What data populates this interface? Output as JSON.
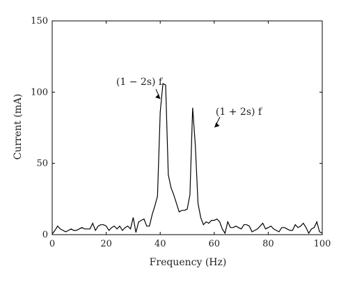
{
  "chart_data": {
    "type": "line",
    "title": "",
    "xlabel": "Frequency (Hz)",
    "ylabel": "Current (mA)",
    "xlim": [
      0,
      100
    ],
    "ylim": [
      0,
      150
    ],
    "x_ticks": [
      0,
      20,
      40,
      60,
      80,
      100
    ],
    "y_ticks": [
      0,
      50,
      100,
      150
    ],
    "grid": false,
    "series": [
      {
        "x": [
          0,
          1,
          2,
          3,
          4,
          5,
          6,
          7,
          8,
          9,
          10,
          11,
          12,
          13,
          14,
          15,
          16,
          17,
          18,
          19,
          20,
          21,
          22,
          23,
          24,
          25,
          26,
          27,
          28,
          29,
          30,
          31,
          32,
          33,
          34,
          35,
          36,
          37,
          38,
          39,
          40,
          41,
          42,
          43,
          44,
          45,
          46,
          47,
          48,
          49,
          50,
          51,
          52,
          53,
          54,
          55,
          56,
          57,
          58,
          59,
          60,
          61,
          62,
          63,
          64,
          65,
          66,
          67,
          68,
          69,
          70,
          71,
          72,
          73,
          74,
          75,
          76,
          77,
          78,
          79,
          80,
          81,
          82,
          83,
          84,
          85,
          86,
          87,
          88,
          89,
          90,
          91,
          92,
          93,
          94,
          95,
          96,
          97,
          98,
          99,
          100
        ],
        "values": [
          0.5,
          3,
          6,
          4,
          3,
          2,
          3,
          4,
          3,
          3,
          4,
          5,
          4,
          4,
          4,
          8,
          3,
          6,
          7,
          7,
          6,
          3,
          5,
          6,
          4,
          6,
          3,
          5,
          6,
          4,
          12,
          1.5,
          9,
          10,
          11,
          6,
          6,
          14,
          20,
          27,
          86,
          106,
          105,
          42,
          33,
          28,
          22,
          16,
          17,
          17,
          18,
          28,
          89,
          63,
          22,
          12,
          7,
          9,
          8,
          10,
          10,
          11,
          9,
          4,
          1,
          9,
          5,
          5,
          6,
          5,
          4,
          7,
          7,
          6,
          2,
          3,
          4,
          6,
          8,
          4,
          5,
          6,
          4,
          3,
          2,
          5,
          5,
          4,
          3,
          3,
          7,
          5,
          6,
          8,
          5,
          1,
          4,
          5,
          9,
          2,
          1
        ]
      }
    ],
    "annotations": [
      {
        "text": "(1 − 2s) f",
        "x": 41,
        "y": 106
      },
      {
        "text": "(1 + 2s) f",
        "x": 55,
        "y": 89
      }
    ]
  }
}
